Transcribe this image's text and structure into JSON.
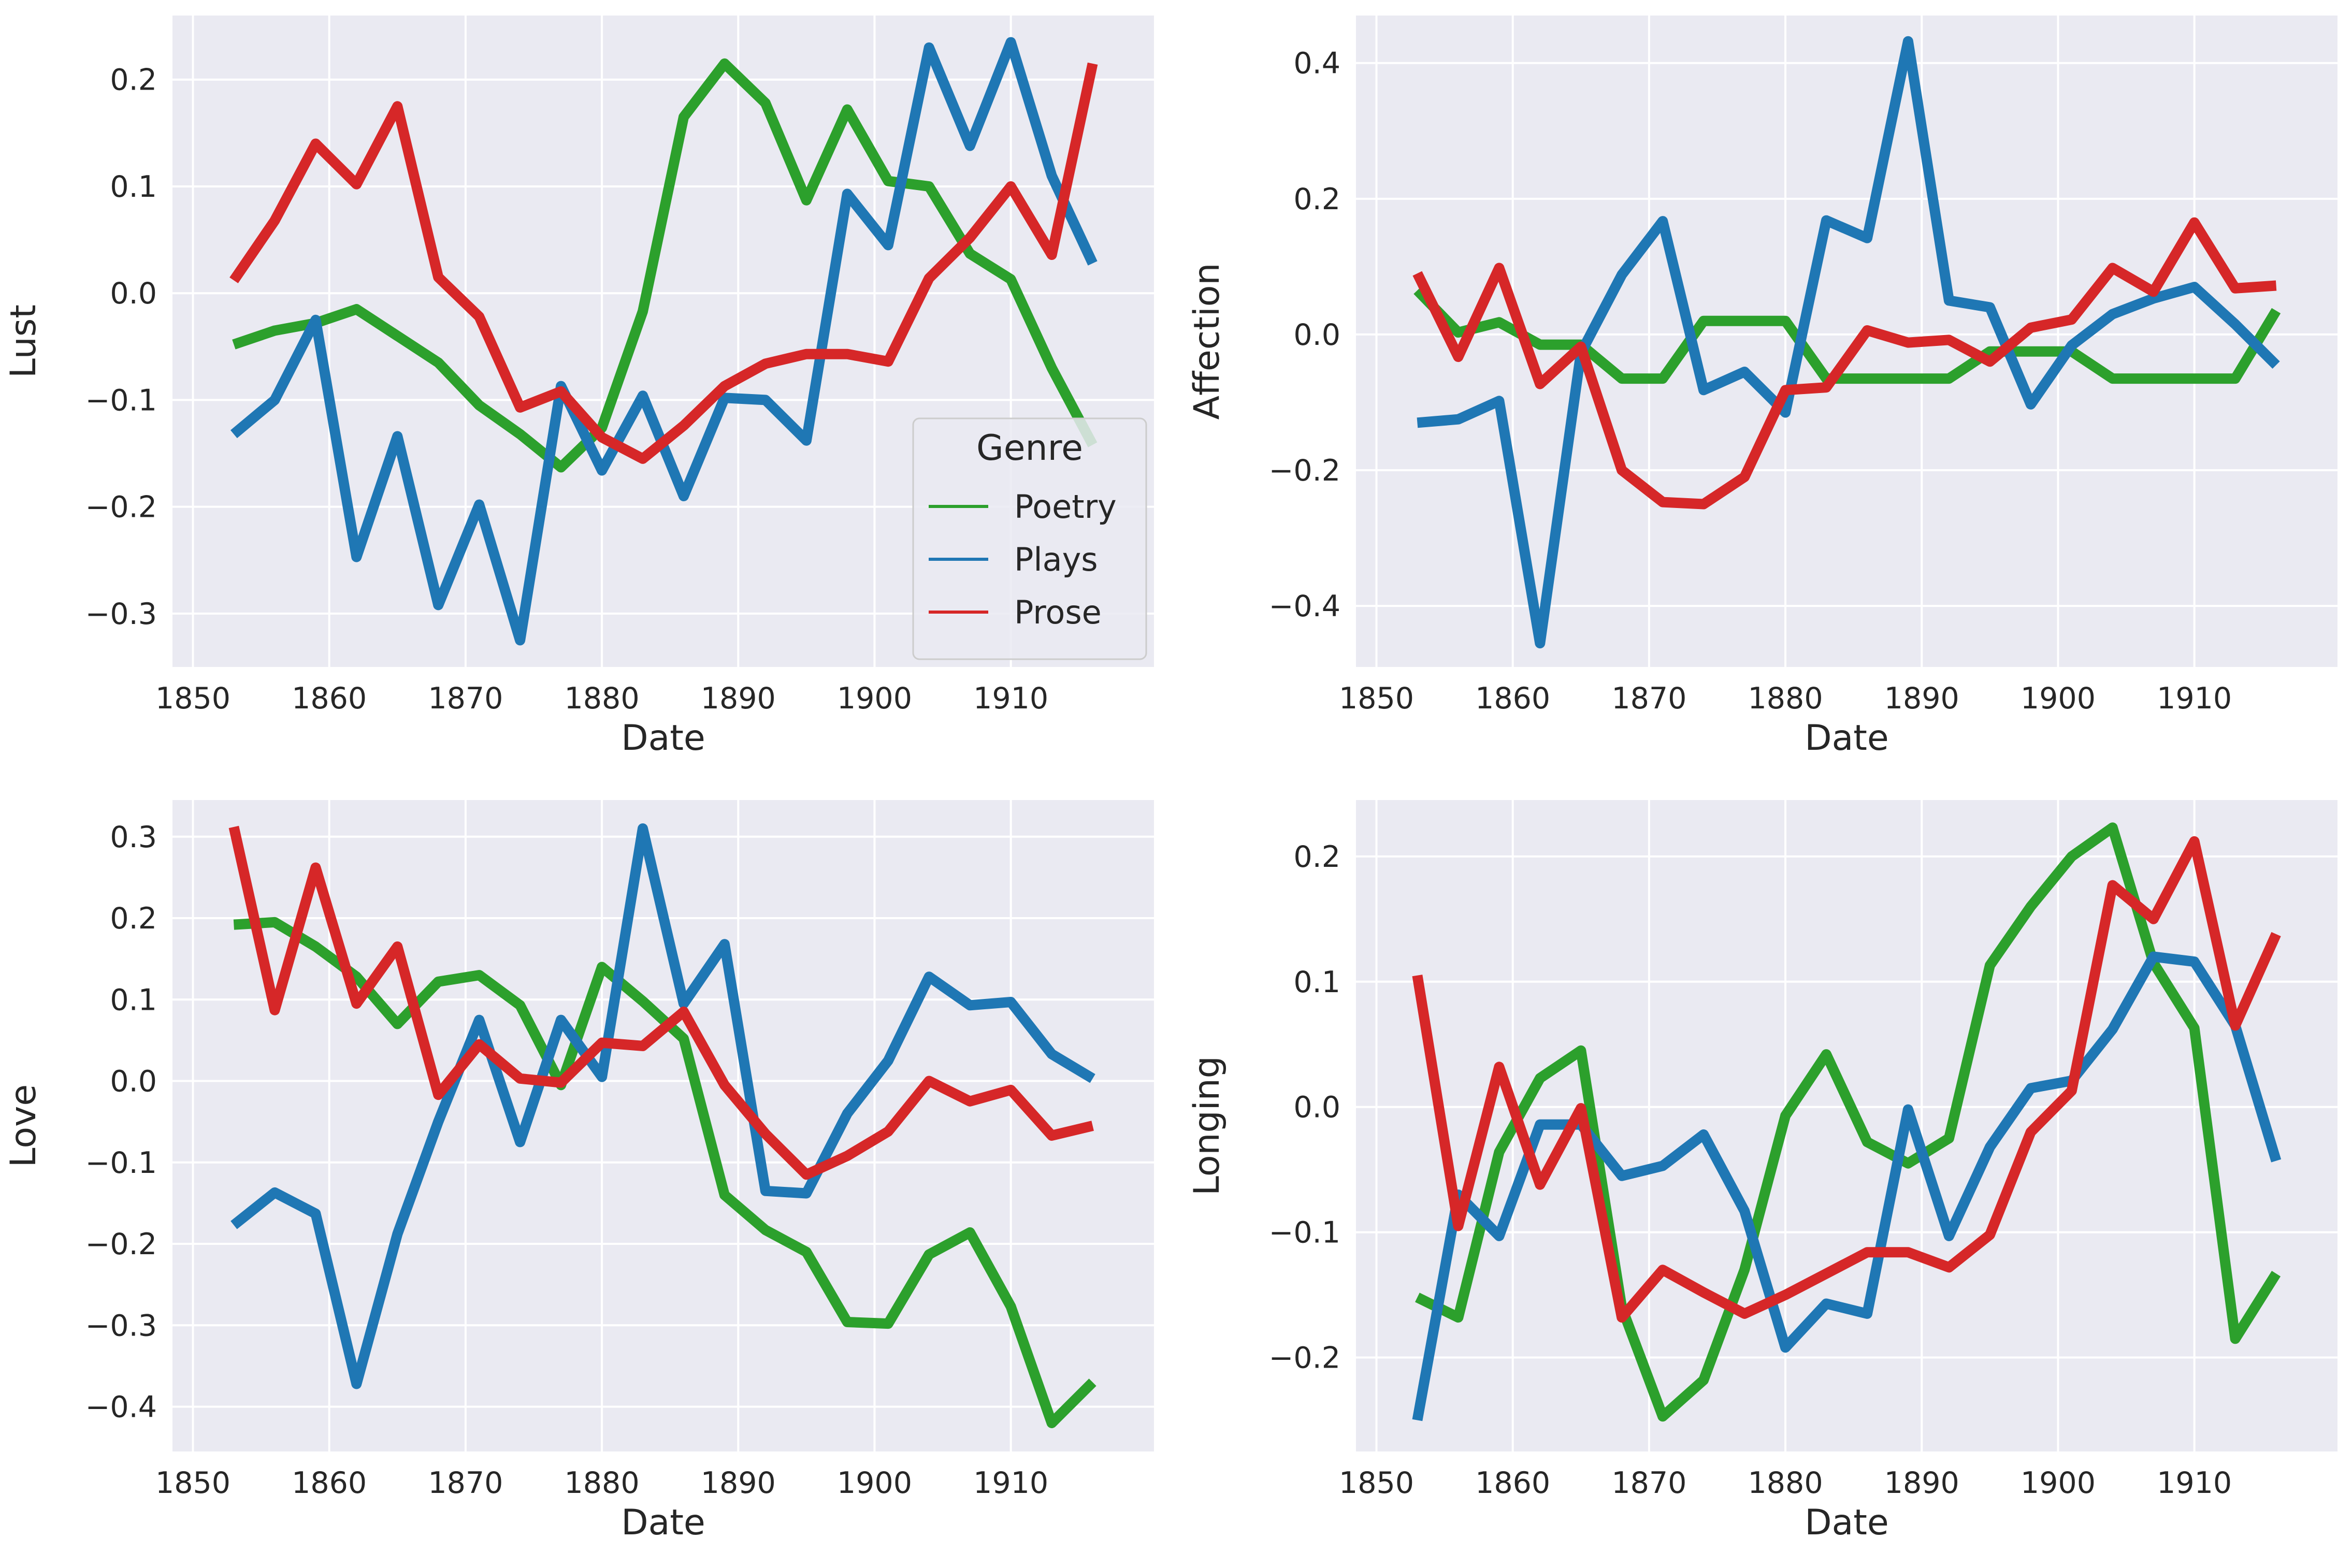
{
  "chart_data": [
    {
      "type": "line",
      "xlabel": "Date",
      "ylabel": "Lust",
      "xlim": [
        1848.5,
        1920.5
      ],
      "ylim": [
        -0.35,
        0.26
      ],
      "xticks": [
        1850,
        1860,
        1870,
        1880,
        1890,
        1900,
        1910
      ],
      "yticks": [
        0.2,
        0.1,
        0.0,
        -0.1,
        -0.2,
        -0.3
      ],
      "ytick_labels": [
        "0.2",
        "0.1",
        "0.0",
        "−0.1",
        "−0.2",
        "−0.3"
      ],
      "x": [
        1853,
        1856,
        1859,
        1862,
        1865,
        1868,
        1871,
        1874,
        1877,
        1880,
        1883,
        1886,
        1889,
        1892,
        1895,
        1898,
        1901,
        1904,
        1907,
        1910,
        1913,
        1916
      ],
      "grid": true,
      "legend": {
        "title": "Genre",
        "position": "lower right"
      },
      "series": [
        {
          "name": "Poetry",
          "color": "#2ca02c",
          "values": [
            -0.048,
            -0.035,
            -0.028,
            -0.015,
            -0.04,
            -0.065,
            -0.105,
            -0.132,
            -0.163,
            -0.126,
            -0.017,
            0.165,
            0.215,
            0.178,
            0.087,
            0.172,
            0.105,
            0.1,
            0.037,
            0.013,
            -0.07,
            -0.142
          ]
        },
        {
          "name": "Plays",
          "color": "#1f77b4",
          "values": [
            -0.132,
            -0.1,
            -0.025,
            -0.247,
            -0.134,
            -0.292,
            -0.198,
            -0.325,
            -0.087,
            -0.166,
            -0.096,
            -0.19,
            -0.098,
            -0.1,
            -0.138,
            0.093,
            0.045,
            0.23,
            0.138,
            0.235,
            0.11,
            0.028
          ]
        },
        {
          "name": "Prose",
          "color": "#d62728",
          "values": [
            0.012,
            0.068,
            0.14,
            0.102,
            0.175,
            0.015,
            -0.022,
            -0.107,
            -0.092,
            -0.135,
            -0.155,
            -0.124,
            -0.087,
            -0.066,
            -0.057,
            -0.057,
            -0.064,
            0.014,
            0.052,
            0.1,
            0.036,
            0.215
          ]
        }
      ]
    },
    {
      "type": "line",
      "xlabel": "Date",
      "ylabel": "Affection",
      "xlim": [
        1848.5,
        1920.5
      ],
      "ylim": [
        -0.49,
        0.47
      ],
      "xticks": [
        1850,
        1860,
        1870,
        1880,
        1890,
        1900,
        1910
      ],
      "yticks": [
        0.4,
        0.2,
        0.0,
        -0.2,
        -0.4
      ],
      "ytick_labels": [
        "0.4",
        "0.2",
        "0.0",
        "−0.2",
        "−0.4"
      ],
      "x": [
        1853,
        1856,
        1859,
        1862,
        1865,
        1868,
        1871,
        1874,
        1877,
        1880,
        1883,
        1886,
        1889,
        1892,
        1895,
        1898,
        1901,
        1904,
        1907,
        1910,
        1913,
        1916
      ],
      "grid": true,
      "series": [
        {
          "name": "Poetry",
          "color": "#2ca02c",
          "values": [
            0.065,
            0.003,
            0.018,
            -0.015,
            -0.015,
            -0.065,
            -0.065,
            0.02,
            0.02,
            0.02,
            -0.065,
            -0.065,
            -0.065,
            -0.065,
            -0.025,
            -0.025,
            -0.025,
            -0.065,
            -0.065,
            -0.065,
            -0.065,
            0.035
          ]
        },
        {
          "name": "Plays",
          "color": "#1f77b4",
          "values": [
            -0.13,
            -0.125,
            -0.098,
            -0.455,
            -0.027,
            0.088,
            0.167,
            -0.082,
            -0.055,
            -0.115,
            0.168,
            0.142,
            0.432,
            0.05,
            0.04,
            -0.103,
            -0.016,
            0.03,
            0.053,
            0.07,
            0.015,
            -0.045
          ]
        },
        {
          "name": "Prose",
          "color": "#d62728",
          "values": [
            0.09,
            -0.033,
            0.098,
            -0.073,
            -0.018,
            -0.2,
            -0.247,
            -0.25,
            -0.21,
            -0.082,
            -0.078,
            0.006,
            -0.012,
            -0.008,
            -0.04,
            0.01,
            0.022,
            0.098,
            0.063,
            0.165,
            0.068,
            0.072
          ]
        }
      ]
    },
    {
      "type": "line",
      "xlabel": "Date",
      "ylabel": "Love",
      "xlim": [
        1848.5,
        1920.5
      ],
      "ylim": [
        -0.455,
        0.345
      ],
      "xticks": [
        1850,
        1860,
        1870,
        1880,
        1890,
        1900,
        1910
      ],
      "yticks": [
        0.3,
        0.2,
        0.1,
        0.0,
        -0.1,
        -0.2,
        -0.3,
        -0.4
      ],
      "ytick_labels": [
        "0.3",
        "0.2",
        "0.1",
        "0.0",
        "−0.1",
        "−0.2",
        "−0.3",
        "−0.4"
      ],
      "x": [
        1853,
        1856,
        1859,
        1862,
        1865,
        1868,
        1871,
        1874,
        1877,
        1880,
        1883,
        1886,
        1889,
        1892,
        1895,
        1898,
        1901,
        1904,
        1907,
        1910,
        1913,
        1916
      ],
      "grid": true,
      "series": [
        {
          "name": "Poetry",
          "color": "#2ca02c",
          "values": [
            0.192,
            0.195,
            0.165,
            0.128,
            0.07,
            0.122,
            0.13,
            0.093,
            -0.005,
            0.14,
            0.098,
            0.052,
            -0.14,
            -0.183,
            -0.21,
            -0.296,
            -0.298,
            -0.213,
            -0.186,
            -0.277,
            -0.42,
            -0.37
          ]
        },
        {
          "name": "Plays",
          "color": "#1f77b4",
          "values": [
            -0.177,
            -0.137,
            -0.163,
            -0.372,
            -0.188,
            -0.05,
            0.075,
            -0.075,
            0.075,
            0.005,
            0.31,
            0.095,
            0.168,
            -0.135,
            -0.138,
            -0.04,
            0.025,
            0.128,
            0.093,
            0.097,
            0.033,
            0.003
          ]
        },
        {
          "name": "Prose",
          "color": "#d62728",
          "values": [
            0.312,
            0.087,
            0.262,
            0.095,
            0.165,
            -0.017,
            0.045,
            0.003,
            -0.002,
            0.047,
            0.043,
            0.085,
            -0.005,
            -0.065,
            -0.115,
            -0.092,
            -0.062,
            0.0,
            -0.025,
            -0.011,
            -0.067,
            -0.055
          ]
        }
      ]
    },
    {
      "type": "line",
      "xlabel": "Date",
      "ylabel": "Longing",
      "xlim": [
        1848.5,
        1920.5
      ],
      "ylim": [
        -0.275,
        0.245
      ],
      "xticks": [
        1850,
        1860,
        1870,
        1880,
        1890,
        1900,
        1910
      ],
      "yticks": [
        0.2,
        0.1,
        0.0,
        -0.1,
        -0.2
      ],
      "ytick_labels": [
        "0.2",
        "0.1",
        "0.0",
        "−0.1",
        "−0.2"
      ],
      "x": [
        1853,
        1856,
        1859,
        1862,
        1865,
        1868,
        1871,
        1874,
        1877,
        1880,
        1883,
        1886,
        1889,
        1892,
        1895,
        1898,
        1901,
        1904,
        1907,
        1910,
        1913,
        1916
      ],
      "grid": true,
      "series": [
        {
          "name": "Poetry",
          "color": "#2ca02c",
          "values": [
            -0.152,
            -0.168,
            -0.036,
            0.023,
            0.045,
            -0.16,
            -0.247,
            -0.218,
            -0.13,
            -0.007,
            0.042,
            -0.028,
            -0.045,
            -0.025,
            0.113,
            0.16,
            0.2,
            0.223,
            0.115,
            0.063,
            -0.185,
            -0.133
          ]
        },
        {
          "name": "Plays",
          "color": "#1f77b4",
          "values": [
            -0.25,
            -0.07,
            -0.103,
            -0.014,
            -0.014,
            -0.055,
            -0.047,
            -0.022,
            -0.083,
            -0.192,
            -0.157,
            -0.165,
            -0.002,
            -0.103,
            -0.032,
            0.015,
            0.021,
            0.062,
            0.12,
            0.116,
            0.065,
            -0.043
          ]
        },
        {
          "name": "Prose",
          "color": "#d62728",
          "values": [
            0.105,
            -0.095,
            0.032,
            -0.062,
            -0.001,
            -0.168,
            -0.13,
            -0.148,
            -0.165,
            -0.15,
            -0.133,
            -0.116,
            -0.116,
            -0.128,
            -0.102,
            -0.02,
            0.013,
            0.177,
            0.15,
            0.212,
            0.065,
            0.138
          ]
        }
      ]
    }
  ]
}
